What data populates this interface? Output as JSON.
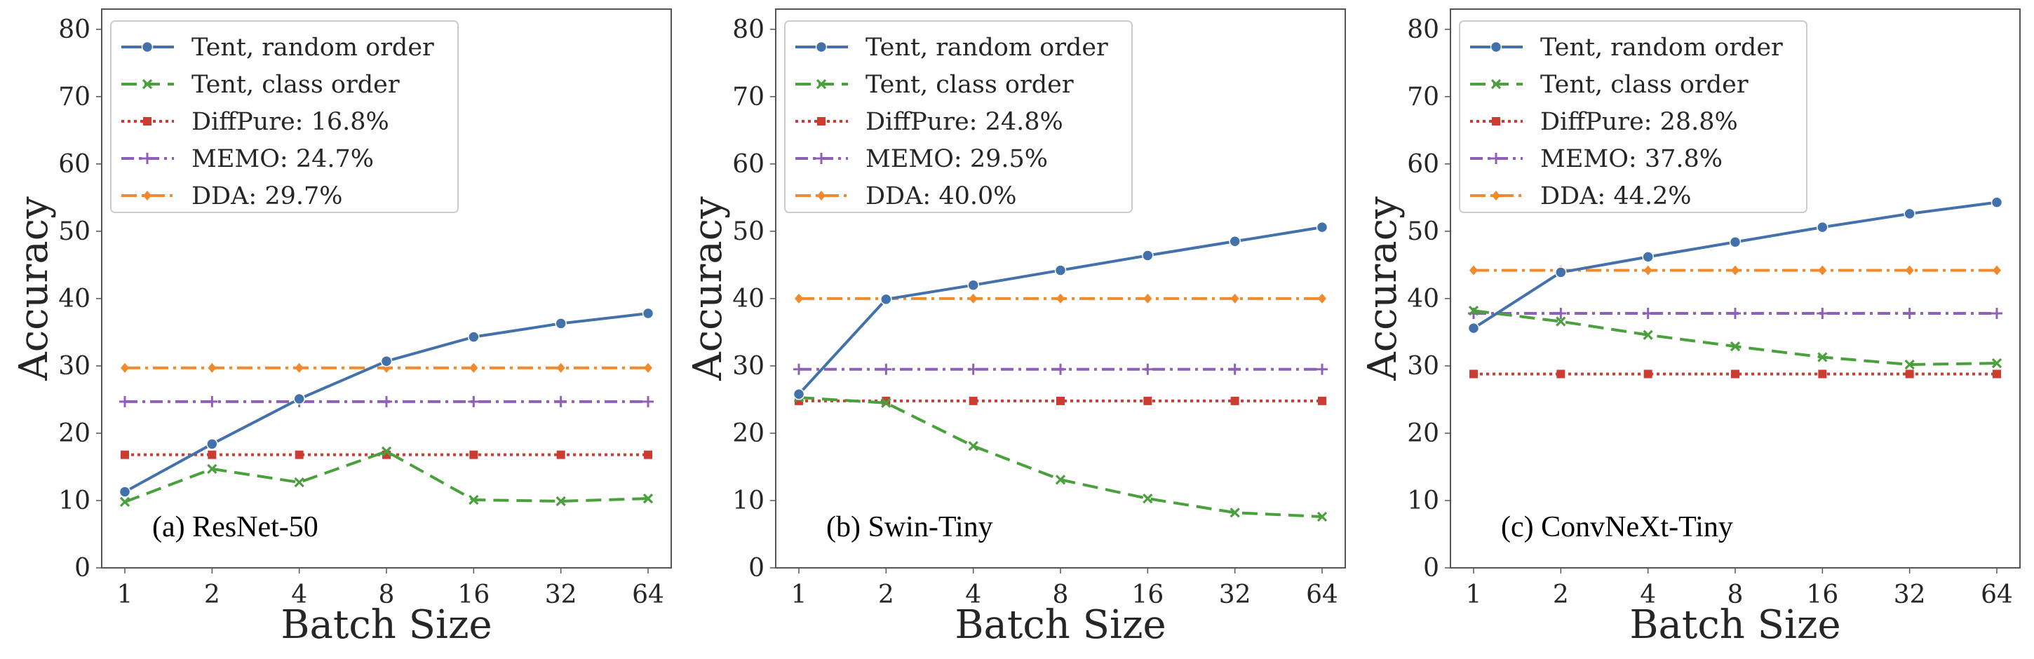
{
  "figure": {
    "xlabel": "Batch Size",
    "ylabel": "Accuracy"
  },
  "series_styles": [
    {
      "key": "tent_random",
      "color": "#4271ab",
      "dash": "none",
      "marker": "circle"
    },
    {
      "key": "tent_class",
      "color": "#49a03c",
      "dash": "22 11",
      "marker": "x"
    },
    {
      "key": "diffpure",
      "color": "#cc3c32",
      "dash": "4 5",
      "marker": "square"
    },
    {
      "key": "memo",
      "color": "#8f60b8",
      "dash": "18 7 4 7",
      "marker": "plus"
    },
    {
      "key": "dda",
      "color": "#f08a2c",
      "dash": "22 7 4 7",
      "marker": "diamond"
    }
  ],
  "chart_data": [
    {
      "type": "line",
      "title": "(a) ResNet-50",
      "xlabel": "Batch Size",
      "ylabel": "Accuracy",
      "categories": [
        "1",
        "2",
        "4",
        "8",
        "16",
        "32",
        "64"
      ],
      "ylim": [
        0,
        83
      ],
      "yticks": [
        0,
        10,
        20,
        30,
        40,
        50,
        60,
        70,
        80
      ],
      "grid": false,
      "legend_position": "top-left",
      "series": [
        {
          "name": "Tent, random order",
          "values": [
            11.3,
            18.4,
            25.1,
            30.7,
            34.3,
            36.3,
            37.8
          ]
        },
        {
          "name": "Tent, class order",
          "values": [
            9.8,
            14.7,
            12.7,
            17.3,
            10.1,
            9.9,
            10.3
          ]
        },
        {
          "name": "DiffPure: 16.8%",
          "values": [
            16.8,
            16.8,
            16.8,
            16.8,
            16.8,
            16.8,
            16.8
          ]
        },
        {
          "name": "MEMO: 24.7%",
          "values": [
            24.7,
            24.7,
            24.7,
            24.7,
            24.7,
            24.7,
            24.7
          ]
        },
        {
          "name": "DDA: 29.7%",
          "values": [
            29.7,
            29.7,
            29.7,
            29.7,
            29.7,
            29.7,
            29.7
          ]
        }
      ]
    },
    {
      "type": "line",
      "title": "(b) Swin-Tiny",
      "xlabel": "Batch Size",
      "ylabel": "Accuracy",
      "categories": [
        "1",
        "2",
        "4",
        "8",
        "16",
        "32",
        "64"
      ],
      "ylim": [
        0,
        83
      ],
      "yticks": [
        0,
        10,
        20,
        30,
        40,
        50,
        60,
        70,
        80
      ],
      "grid": false,
      "legend_position": "top-left",
      "series": [
        {
          "name": "Tent, random order",
          "values": [
            25.8,
            39.9,
            42.0,
            44.2,
            46.4,
            48.5,
            50.6
          ]
        },
        {
          "name": "Tent, class order",
          "values": [
            25.3,
            24.5,
            18.1,
            13.1,
            10.3,
            8.2,
            7.6
          ]
        },
        {
          "name": "DiffPure: 24.8%",
          "values": [
            24.8,
            24.8,
            24.8,
            24.8,
            24.8,
            24.8,
            24.8
          ]
        },
        {
          "name": "MEMO: 29.5%",
          "values": [
            29.5,
            29.5,
            29.5,
            29.5,
            29.5,
            29.5,
            29.5
          ]
        },
        {
          "name": "DDA: 40.0%",
          "values": [
            40.0,
            40.0,
            40.0,
            40.0,
            40.0,
            40.0,
            40.0
          ]
        }
      ]
    },
    {
      "type": "line",
      "title": "(c) ConvNeXt-Tiny",
      "xlabel": "Batch Size",
      "ylabel": "Accuracy",
      "categories": [
        "1",
        "2",
        "4",
        "8",
        "16",
        "32",
        "64"
      ],
      "ylim": [
        0,
        83
      ],
      "yticks": [
        0,
        10,
        20,
        30,
        40,
        50,
        60,
        70,
        80
      ],
      "grid": false,
      "legend_position": "top-left",
      "series": [
        {
          "name": "Tent, random order",
          "values": [
            35.6,
            43.9,
            46.2,
            48.4,
            50.6,
            52.6,
            54.3
          ]
        },
        {
          "name": "Tent, class order",
          "values": [
            38.2,
            36.6,
            34.6,
            32.9,
            31.3,
            30.2,
            30.4
          ]
        },
        {
          "name": "DiffPure: 28.8%",
          "values": [
            28.8,
            28.8,
            28.8,
            28.8,
            28.8,
            28.8,
            28.8
          ]
        },
        {
          "name": "MEMO: 37.8%",
          "values": [
            37.8,
            37.8,
            37.8,
            37.8,
            37.8,
            37.8,
            37.8
          ]
        },
        {
          "name": "DDA: 44.2%",
          "values": [
            44.2,
            44.2,
            44.2,
            44.2,
            44.2,
            44.2,
            44.2
          ]
        }
      ]
    }
  ]
}
